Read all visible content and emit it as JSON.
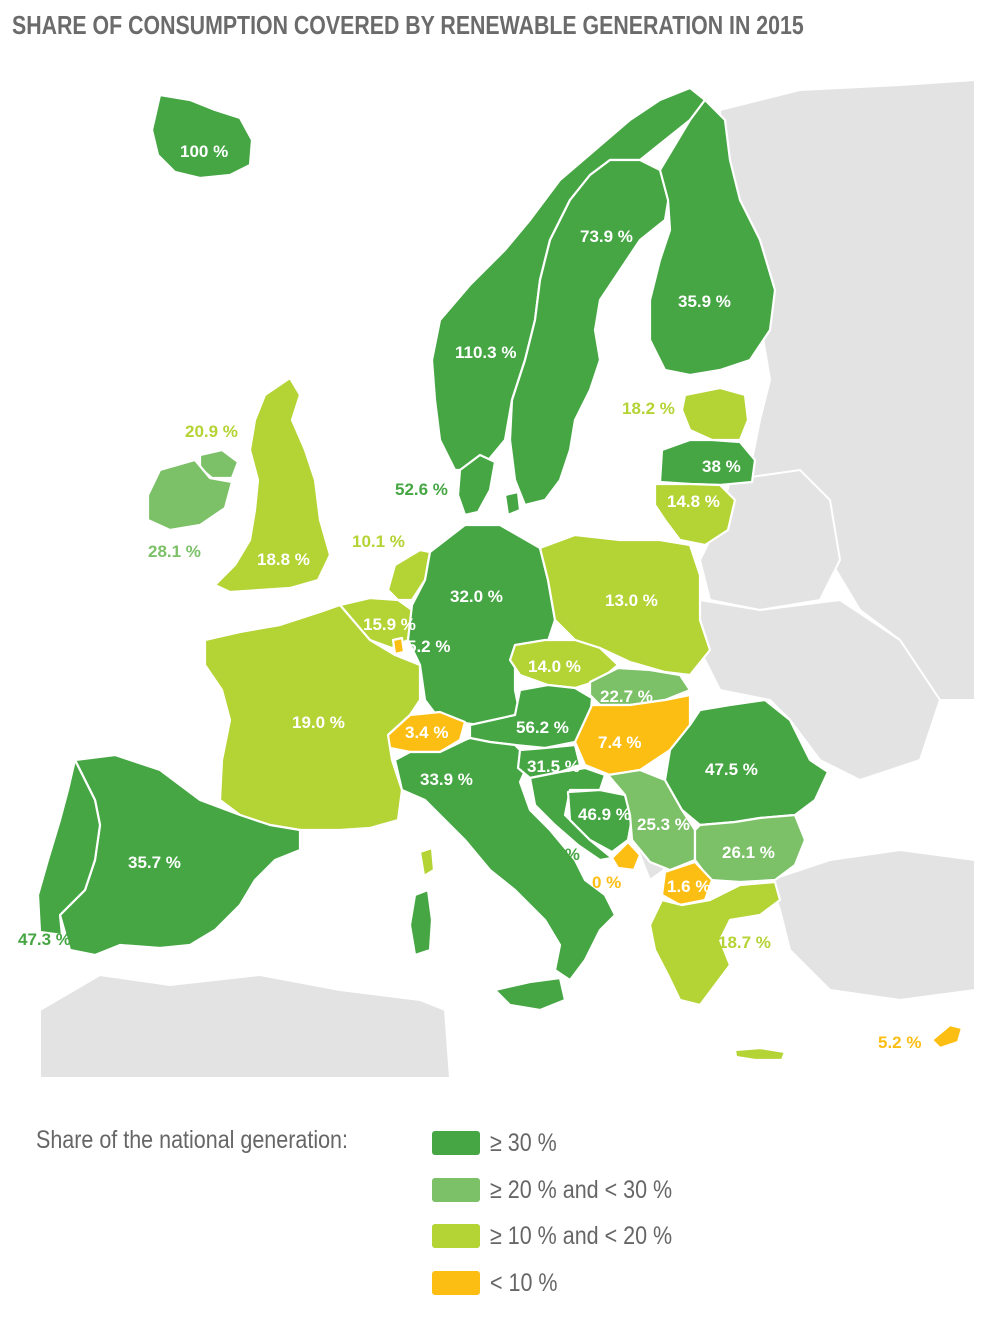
{
  "title": "SHARE OF CONSUMPTION COVERED BY RENEWABLE GENERATION IN 2015",
  "colors": {
    "dark_green": "#45a643",
    "mid_green": "#7cc168",
    "light_green": "#b4d334",
    "orange": "#fdbe14",
    "land": "#e3e3e3"
  },
  "map": {
    "labels": {
      "iceland": "100 %",
      "norway": "110.3 %",
      "sweden": "73.9 %",
      "finland": "35.9 %",
      "estonia": "18.2 %",
      "latvia": "38 %",
      "lithuania": "14.8 %",
      "denmark": "52.6 %",
      "northern_ireland": "20.9 %",
      "ireland": "28.1 %",
      "great_britain": "18.8 %",
      "netherlands": "10.1 %",
      "belgium": "15.9 %",
      "luxembourg": "5.2 %",
      "germany": "32.0 %",
      "poland": "13.0 %",
      "czechia": "14.0 %",
      "slovakia": "22.7 %",
      "austria": "56.2 %",
      "hungary": "7.4 %",
      "switzerland": "3.4 %",
      "france": "19.0 %",
      "italy": "33.9 %",
      "slovenia": "31.5 %",
      "croatia": "37.9 %",
      "bosnia": "46.9 %",
      "serbia": "25.3 %",
      "romania": "47.5 %",
      "bulgaria": "26.1 %",
      "montenegro": "0 %",
      "macedonia": "1.6 %",
      "greece": "18.7 %",
      "cyprus": "5.2 %",
      "spain": "35.7 %",
      "portugal": "47.3 %"
    }
  },
  "legend": {
    "title": "Share of the national generation:",
    "items": [
      {
        "label": "≥ 30 %",
        "color": "#45a643"
      },
      {
        "label": "≥ 20 % and < 30 %",
        "color": "#7cc168"
      },
      {
        "label": "≥ 10 % and < 20 %",
        "color": "#b4d334"
      },
      {
        "label": "< 10 %",
        "color": "#fdbe14"
      }
    ]
  }
}
